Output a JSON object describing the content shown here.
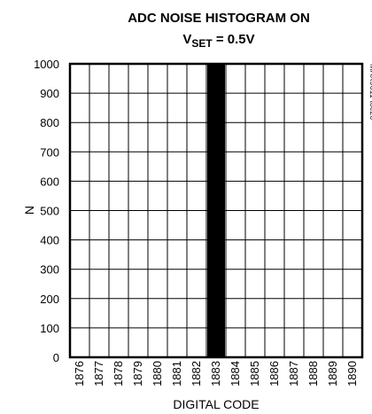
{
  "chart_data": {
    "type": "bar",
    "title_line1": "ADC NOISE HISTOGRAM ON",
    "title_line2": {
      "prefix": "V",
      "subscript": "SET",
      "suffix": " = 0.5V"
    },
    "xlabel": "DIGITAL CODE",
    "ylabel": "N",
    "ylim": [
      0,
      1000
    ],
    "y_ticks": [
      0,
      100,
      200,
      300,
      400,
      500,
      600,
      700,
      800,
      900,
      1000
    ],
    "categories": [
      "1876",
      "1877",
      "1878",
      "1879",
      "1880",
      "1881",
      "1882",
      "1883",
      "1884",
      "1885",
      "1886",
      "1887",
      "1888",
      "1889",
      "1890"
    ],
    "values": [
      0,
      0,
      0,
      0,
      0,
      0,
      0,
      1000,
      0,
      0,
      0,
      0,
      0,
      0,
      0
    ],
    "grid": true,
    "bar_color": "#000000",
    "figure_id": "MAX9611 toc20"
  }
}
